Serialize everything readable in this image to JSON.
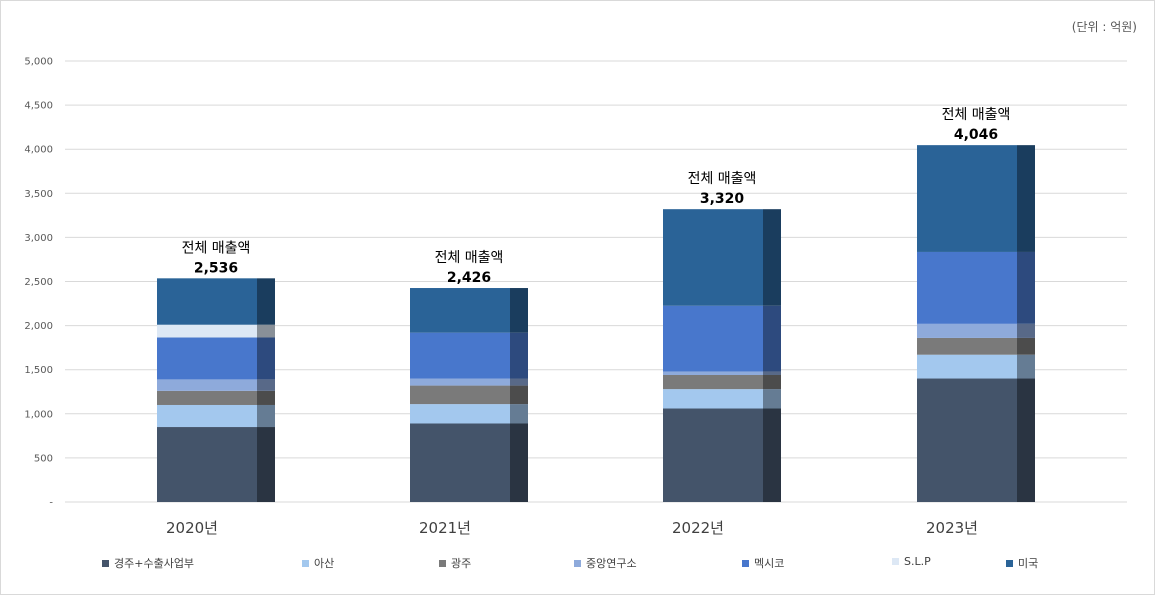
{
  "unit_label": "(단위 : 억원)",
  "chart_data": {
    "type": "bar",
    "stacked": true,
    "categories": [
      "2020년",
      "2021년",
      "2022년",
      "2023년"
    ],
    "series": [
      {
        "name": "경주+수출사업부",
        "values": [
          850,
          890,
          1060,
          1400
        ],
        "color": "#44546a"
      },
      {
        "name": "아산",
        "values": [
          250,
          220,
          220,
          270
        ],
        "color": "#a3c8ee"
      },
      {
        "name": "광주",
        "values": [
          160,
          210,
          160,
          190
        ],
        "color": "#7a7a7a"
      },
      {
        "name": "중앙연구소",
        "values": [
          130,
          80,
          40,
          160
        ],
        "color": "#8eaadb"
      },
      {
        "name": "멕시코",
        "values": [
          475,
          520,
          745,
          815
        ],
        "color": "#4877cc"
      },
      {
        "name": "S.L.P",
        "values": [
          145,
          0,
          0,
          0
        ],
        "color": "#dde8f5"
      },
      {
        "name": "미국",
        "values": [
          526,
          506,
          1095,
          1211
        ],
        "color": "#2a6397"
      }
    ],
    "totals": [
      {
        "label": "전체 매출액",
        "value": "2,536",
        "numeric": 2536
      },
      {
        "label": "전체 매출액",
        "value": "2,426",
        "numeric": 2426
      },
      {
        "label": "전체 매출액",
        "value": "3,320",
        "numeric": 3320
      },
      {
        "label": "전체 매출액",
        "value": "4,046",
        "numeric": 4046
      }
    ],
    "ylim": [
      0,
      5000
    ],
    "yticks": [
      {
        "value": 0,
        "label": "-"
      },
      {
        "value": 500,
        "label": "500"
      },
      {
        "value": 1000,
        "label": "1,000"
      },
      {
        "value": 1500,
        "label": "1,500"
      },
      {
        "value": 2000,
        "label": "2,000"
      },
      {
        "value": 2500,
        "label": "2,500"
      },
      {
        "value": 3000,
        "label": "3,000"
      },
      {
        "value": 3500,
        "label": "3,500"
      },
      {
        "value": 4000,
        "label": "4,000"
      },
      {
        "value": 4500,
        "label": "4,500"
      },
      {
        "value": 5000,
        "label": "5,000"
      }
    ],
    "grid": true,
    "legend_position": "bottom"
  }
}
